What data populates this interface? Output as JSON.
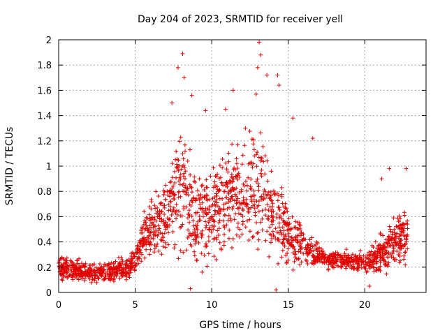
{
  "chart_data": {
    "type": "scatter",
    "title": "Day 204 of 2023, SRMTID for receiver yell",
    "xlabel": "GPS time / hours",
    "ylabel": "SRMTID / TECUs",
    "xlim": [
      0,
      24
    ],
    "ylim": [
      0,
      2
    ],
    "xticks": [
      0,
      5,
      10,
      15,
      20
    ],
    "xtick_labels": [
      "0",
      "5",
      "10",
      "15",
      "20"
    ],
    "yticks": [
      0,
      0.2,
      0.4,
      0.6,
      0.8,
      1,
      1.2,
      1.4,
      1.6,
      1.8,
      2
    ],
    "ytick_labels": [
      "0",
      "0.2",
      "0.4",
      "0.6",
      "0.8",
      "1",
      "1.2",
      "1.4",
      "1.6",
      "1.8",
      "2"
    ],
    "grid": true,
    "marker": "+",
    "color": "#e00000",
    "envelope": {
      "description": "approximate central value and spread of the SRMTID cloud per hour",
      "hour": [
        0,
        1,
        2,
        3,
        4,
        5,
        5.5,
        6,
        7,
        7.5,
        8,
        9,
        10,
        11,
        12,
        13,
        14,
        15,
        16,
        17,
        18,
        19,
        20,
        21,
        22,
        22.8
      ],
      "center": [
        0.2,
        0.18,
        0.15,
        0.16,
        0.18,
        0.22,
        0.45,
        0.5,
        0.6,
        0.8,
        0.85,
        0.6,
        0.6,
        0.75,
        0.75,
        0.8,
        0.65,
        0.45,
        0.35,
        0.28,
        0.26,
        0.25,
        0.24,
        0.3,
        0.4,
        0.45
      ],
      "spread": [
        0.1,
        0.08,
        0.07,
        0.08,
        0.08,
        0.1,
        0.18,
        0.2,
        0.3,
        0.4,
        0.45,
        0.35,
        0.35,
        0.4,
        0.4,
        0.45,
        0.35,
        0.25,
        0.15,
        0.08,
        0.07,
        0.07,
        0.08,
        0.15,
        0.2,
        0.22
      ]
    },
    "notable_points": [
      {
        "x": 8.1,
        "y": 1.89
      },
      {
        "x": 7.8,
        "y": 1.78
      },
      {
        "x": 8.2,
        "y": 1.7
      },
      {
        "x": 8.7,
        "y": 1.56
      },
      {
        "x": 7.4,
        "y": 1.5
      },
      {
        "x": 11.4,
        "y": 1.6
      },
      {
        "x": 13.1,
        "y": 1.98
      },
      {
        "x": 13.2,
        "y": 1.88
      },
      {
        "x": 13.0,
        "y": 1.78
      },
      {
        "x": 13.6,
        "y": 1.72
      },
      {
        "x": 14.3,
        "y": 1.72
      },
      {
        "x": 12.9,
        "y": 1.57
      },
      {
        "x": 14.4,
        "y": 1.64
      },
      {
        "x": 15.3,
        "y": 1.38
      },
      {
        "x": 16.6,
        "y": 1.22
      },
      {
        "x": 9.6,
        "y": 1.44
      },
      {
        "x": 10.9,
        "y": 1.45
      },
      {
        "x": 12.2,
        "y": 1.3
      },
      {
        "x": 8.6,
        "y": 0.03
      },
      {
        "x": 14.2,
        "y": 0.02
      },
      {
        "x": 20.3,
        "y": 0.05
      },
      {
        "x": 21.6,
        "y": 0.98
      },
      {
        "x": 22.7,
        "y": 0.98
      },
      {
        "x": 21.1,
        "y": 0.9
      }
    ]
  }
}
